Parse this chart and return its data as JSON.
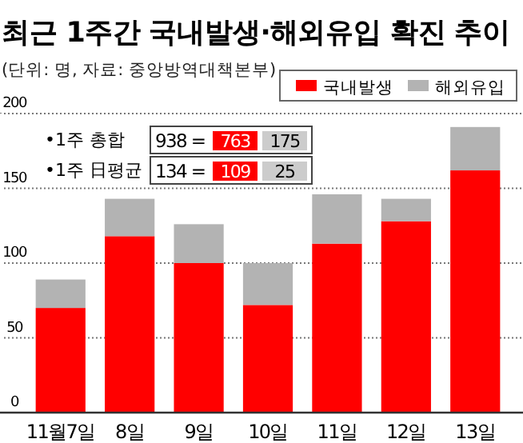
{
  "chart_data": {
    "type": "bar",
    "title": "최근 1주간 국내발생·해외유입 확진 추이",
    "subtitle": "(단위: 명, 자료: 중앙방역대책본부)",
    "categories": [
      "11월7일",
      "8일",
      "9일",
      "10일",
      "11일",
      "12일",
      "13일"
    ],
    "series": [
      {
        "name": "국내발생",
        "color": "#ff0000",
        "values": [
          70,
          118,
          100,
          72,
          113,
          128,
          162
        ]
      },
      {
        "name": "해외유입",
        "color": "#b3b3b3",
        "values": [
          19,
          25,
          26,
          28,
          33,
          15,
          29
        ]
      }
    ],
    "stacked": true,
    "ylim": [
      0,
      200
    ],
    "yticks": [
      0,
      50,
      100,
      150,
      200
    ],
    "grid": "y",
    "legend": "top right",
    "annotations": [
      "•1주 총합",
      "938 =",
      "763",
      "175",
      "•1주 日평균",
      "134 =",
      "109",
      "25"
    ]
  }
}
